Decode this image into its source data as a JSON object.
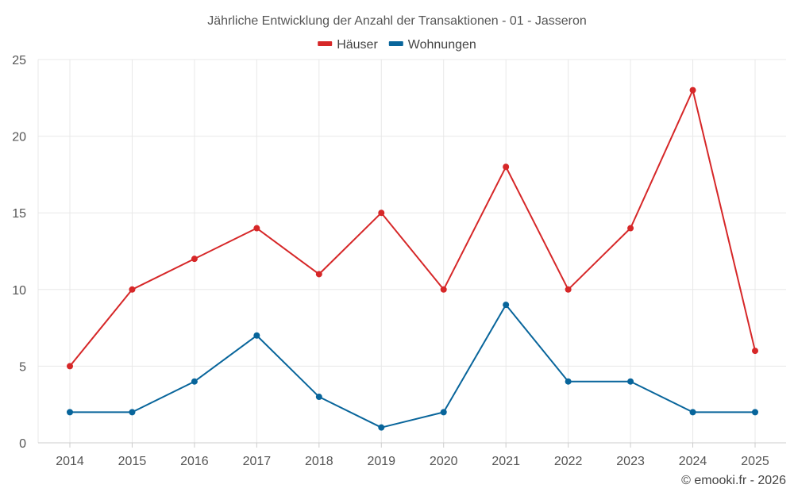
{
  "chart_data": {
    "type": "line",
    "title": "Jährliche Entwicklung der Anzahl der Transaktionen - 01 - Jasseron",
    "xlabel": "",
    "ylabel": "",
    "categories": [
      "2014",
      "2015",
      "2016",
      "2017",
      "2018",
      "2019",
      "2020",
      "2021",
      "2022",
      "2023",
      "2024",
      "2025"
    ],
    "ylim": [
      0,
      25
    ],
    "yticks": [
      0,
      5,
      10,
      15,
      20,
      25
    ],
    "grid": true,
    "legend_position": "top-center",
    "series": [
      {
        "name": "Häuser",
        "color": "#d62728",
        "values": [
          5,
          10,
          12,
          14,
          11,
          15,
          10,
          18,
          10,
          14,
          23,
          6
        ]
      },
      {
        "name": "Wohnungen",
        "color": "#08659b",
        "values": [
          2,
          2,
          4,
          7,
          3,
          1,
          2,
          9,
          4,
          4,
          2,
          2
        ]
      }
    ]
  },
  "credit": "© emooki.fr - 2026"
}
